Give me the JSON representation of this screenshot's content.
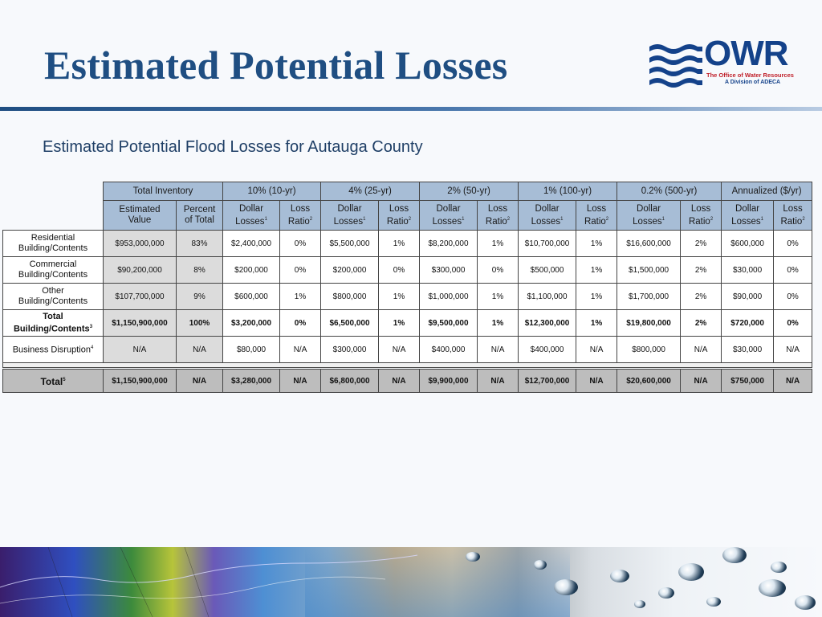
{
  "slide": {
    "title": "Estimated Potential Losses",
    "subtitle": "Estimated Potential Flood Losses for Autauga County"
  },
  "logo": {
    "wordmark": "OWR",
    "line1": "The Office of Water Resources",
    "line2": "A Division of ADECA",
    "colors": {
      "primary": "#14428a",
      "accent": "#c0202a"
    }
  },
  "table": {
    "group_headers": [
      "Total Inventory",
      "10% (10-yr)",
      "4% (25-yr)",
      "2% (50-yr)",
      "1% (100-yr)",
      "0.2% (500-yr)",
      "Annualized ($/yr)"
    ],
    "sub_headers": {
      "estimated_value": [
        "Estimated",
        "Value"
      ],
      "percent_total": [
        "Percent",
        "of Total"
      ],
      "dollar_losses": [
        "Dollar",
        "Losses",
        "1"
      ],
      "loss_ratio": [
        "Loss",
        "Ratio",
        "2"
      ]
    },
    "rows": [
      {
        "label": [
          "Residential",
          "Building/Contents"
        ],
        "values": [
          "$953,000,000",
          "83%",
          "$2,400,000",
          "0%",
          "$5,500,000",
          "1%",
          "$8,200,000",
          "1%",
          "$10,700,000",
          "1%",
          "$16,600,000",
          "2%",
          "$600,000",
          "0%"
        ]
      },
      {
        "label": [
          "Commercial",
          "Building/Contents"
        ],
        "values": [
          "$90,200,000",
          "8%",
          "$200,000",
          "0%",
          "$200,000",
          "0%",
          "$300,000",
          "0%",
          "$500,000",
          "1%",
          "$1,500,000",
          "2%",
          "$30,000",
          "0%"
        ]
      },
      {
        "label": [
          "Other",
          "Building/Contents"
        ],
        "values": [
          "$107,700,000",
          "9%",
          "$600,000",
          "1%",
          "$800,000",
          "1%",
          "$1,000,000",
          "1%",
          "$1,100,000",
          "1%",
          "$1,700,000",
          "2%",
          "$90,000",
          "0%"
        ]
      },
      {
        "label": [
          "Total",
          "Building/Contents"
        ],
        "label_sup": "3",
        "values": [
          "$1,150,900,000",
          "100%",
          "$3,200,000",
          "0%",
          "$6,500,000",
          "1%",
          "$9,500,000",
          "1%",
          "$12,300,000",
          "1%",
          "$19,800,000",
          "2%",
          "$720,000",
          "0%"
        ]
      },
      {
        "label": [
          "Business Disruption"
        ],
        "label_sup": "4",
        "values": [
          "N/A",
          "N/A",
          "$80,000",
          "N/A",
          "$300,000",
          "N/A",
          "$400,000",
          "N/A",
          "$400,000",
          "N/A",
          "$800,000",
          "N/A",
          "$30,000",
          "N/A"
        ]
      }
    ],
    "total_row": {
      "label": "Total",
      "label_sup": "5",
      "values": [
        "$1,150,900,000",
        "N/A",
        "$3,280,000",
        "N/A",
        "$6,800,000",
        "N/A",
        "$9,900,000",
        "N/A",
        "$12,700,000",
        "N/A",
        "$20,600,000",
        "N/A",
        "$750,000",
        "N/A"
      ]
    }
  }
}
